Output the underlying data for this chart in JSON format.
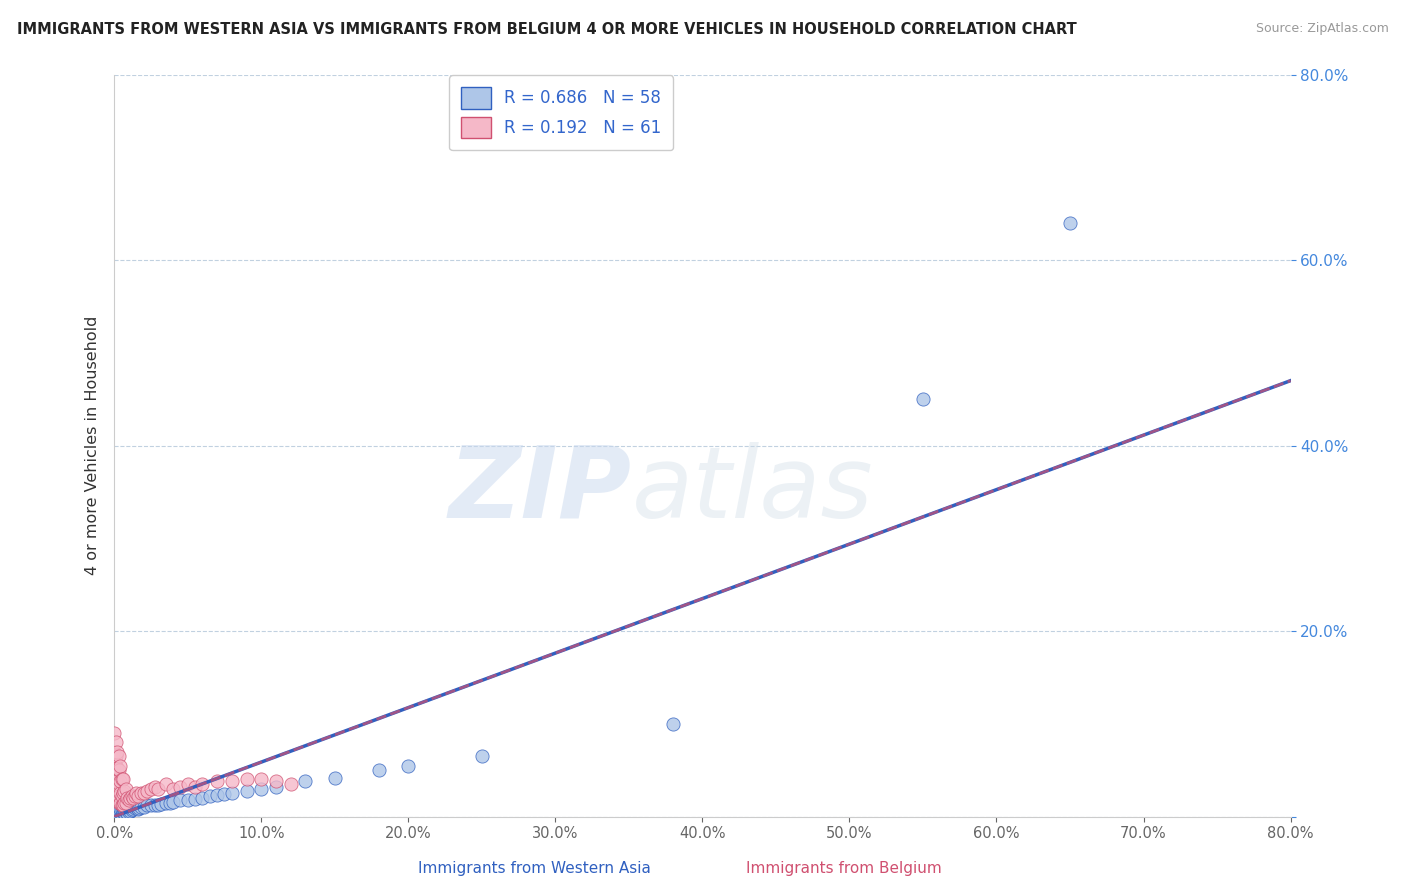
{
  "title": "IMMIGRANTS FROM WESTERN ASIA VS IMMIGRANTS FROM BELGIUM 4 OR MORE VEHICLES IN HOUSEHOLD CORRELATION CHART",
  "source": "Source: ZipAtlas.com",
  "ylabel": "4 or more Vehicles in Household",
  "xlabel_blue": "Immigrants from Western Asia",
  "xlabel_pink": "Immigrants from Belgium",
  "r_blue": 0.686,
  "n_blue": 58,
  "r_pink": 0.192,
  "n_pink": 61,
  "xlim": [
    0,
    0.8
  ],
  "ylim": [
    0,
    0.8
  ],
  "xticks": [
    0.0,
    0.1,
    0.2,
    0.3,
    0.4,
    0.5,
    0.6,
    0.7,
    0.8
  ],
  "yticks": [
    0.0,
    0.2,
    0.4,
    0.6,
    0.8
  ],
  "color_blue": "#aec6e8",
  "color_pink": "#f5b8c8",
  "line_color_blue": "#3060c0",
  "line_color_pink": "#d05070",
  "watermark_zip": "ZIP",
  "watermark_atlas": "atlas",
  "blue_line_x0": 0.0,
  "blue_line_y0": 0.0,
  "blue_line_x1": 0.8,
  "blue_line_y1": 0.47,
  "pink_line_x0": 0.0,
  "pink_line_y0": 0.0,
  "pink_line_x1": 0.8,
  "pink_line_y1": 0.47,
  "blue_scatter_x": [
    0.001,
    0.001,
    0.002,
    0.002,
    0.003,
    0.003,
    0.003,
    0.004,
    0.004,
    0.005,
    0.005,
    0.005,
    0.006,
    0.006,
    0.007,
    0.007,
    0.008,
    0.008,
    0.009,
    0.009,
    0.01,
    0.01,
    0.011,
    0.012,
    0.013,
    0.014,
    0.015,
    0.016,
    0.017,
    0.018,
    0.02,
    0.022,
    0.025,
    0.028,
    0.03,
    0.032,
    0.035,
    0.038,
    0.04,
    0.045,
    0.05,
    0.055,
    0.06,
    0.065,
    0.07,
    0.075,
    0.08,
    0.09,
    0.1,
    0.11,
    0.13,
    0.15,
    0.18,
    0.2,
    0.25,
    0.38,
    0.55,
    0.65
  ],
  "blue_scatter_y": [
    0.005,
    0.008,
    0.005,
    0.008,
    0.003,
    0.006,
    0.01,
    0.004,
    0.008,
    0.003,
    0.007,
    0.012,
    0.005,
    0.009,
    0.004,
    0.008,
    0.005,
    0.01,
    0.004,
    0.008,
    0.005,
    0.01,
    0.006,
    0.007,
    0.008,
    0.009,
    0.01,
    0.008,
    0.009,
    0.01,
    0.01,
    0.012,
    0.012,
    0.013,
    0.013,
    0.014,
    0.015,
    0.015,
    0.016,
    0.018,
    0.018,
    0.019,
    0.02,
    0.022,
    0.023,
    0.024,
    0.025,
    0.028,
    0.03,
    0.032,
    0.038,
    0.042,
    0.05,
    0.055,
    0.065,
    0.1,
    0.45,
    0.64
  ],
  "pink_scatter_x": [
    0.0,
    0.0,
    0.0,
    0.0,
    0.0,
    0.001,
    0.001,
    0.001,
    0.001,
    0.001,
    0.001,
    0.002,
    0.002,
    0.002,
    0.002,
    0.002,
    0.003,
    0.003,
    0.003,
    0.003,
    0.003,
    0.004,
    0.004,
    0.004,
    0.004,
    0.005,
    0.005,
    0.005,
    0.006,
    0.006,
    0.006,
    0.007,
    0.007,
    0.008,
    0.008,
    0.009,
    0.01,
    0.011,
    0.012,
    0.013,
    0.014,
    0.015,
    0.016,
    0.018,
    0.02,
    0.022,
    0.025,
    0.028,
    0.03,
    0.035,
    0.04,
    0.045,
    0.05,
    0.055,
    0.06,
    0.07,
    0.08,
    0.09,
    0.1,
    0.11,
    0.12
  ],
  "pink_scatter_y": [
    0.03,
    0.045,
    0.055,
    0.07,
    0.09,
    0.02,
    0.03,
    0.04,
    0.055,
    0.065,
    0.08,
    0.018,
    0.028,
    0.038,
    0.052,
    0.07,
    0.015,
    0.022,
    0.035,
    0.05,
    0.065,
    0.015,
    0.025,
    0.038,
    0.055,
    0.012,
    0.022,
    0.04,
    0.012,
    0.025,
    0.04,
    0.015,
    0.028,
    0.015,
    0.03,
    0.02,
    0.018,
    0.02,
    0.022,
    0.02,
    0.022,
    0.025,
    0.022,
    0.025,
    0.025,
    0.028,
    0.03,
    0.032,
    0.03,
    0.035,
    0.03,
    0.032,
    0.035,
    0.032,
    0.035,
    0.038,
    0.038,
    0.04,
    0.04,
    0.038,
    0.035
  ]
}
